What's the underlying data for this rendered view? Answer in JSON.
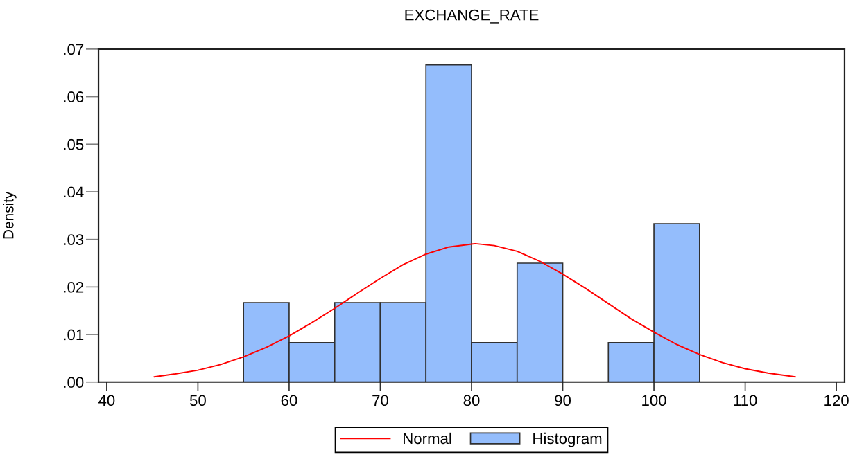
{
  "chart_data": {
    "type": "histogram",
    "title": "EXCHANGE_RATE",
    "ylabel": "Density",
    "xlim": [
      39.1,
      120.9
    ],
    "xticks": [
      40,
      50,
      60,
      70,
      80,
      90,
      100,
      110,
      120
    ],
    "ylim": [
      0,
      0.07
    ],
    "yticks": [
      {
        "value": 0,
        "label": ".00"
      },
      {
        "value": 0.01,
        "label": ".01"
      },
      {
        "value": 0.02,
        "label": ".02"
      },
      {
        "value": 0.03,
        "label": ".03"
      },
      {
        "value": 0.04,
        "label": ".04"
      },
      {
        "value": 0.05,
        "label": ".05"
      },
      {
        "value": 0.06,
        "label": ".06"
      },
      {
        "value": 0.07,
        "label": ".07"
      }
    ],
    "legend": "bottom",
    "series": [
      {
        "name": "Normal",
        "type": "line",
        "color": "#ff0000",
        "x": [
          45.2,
          47.5,
          50,
          52.5,
          55,
          57.5,
          60,
          62.5,
          65,
          67.5,
          70,
          72.5,
          75,
          77.5,
          80,
          80.4,
          82.5,
          85,
          87.5,
          90,
          92.5,
          95,
          97.5,
          100,
          102.5,
          105,
          107.5,
          110,
          112.5,
          115.5
        ],
        "values": [
          0.0011,
          0.0017,
          0.0025,
          0.0037,
          0.0053,
          0.0073,
          0.0097,
          0.0125,
          0.0155,
          0.0187,
          0.0218,
          0.0247,
          0.0269,
          0.0284,
          0.029,
          0.0291,
          0.0287,
          0.0275,
          0.0254,
          0.0227,
          0.0197,
          0.0165,
          0.0133,
          0.0105,
          0.0079,
          0.0058,
          0.0041,
          0.0028,
          0.0019,
          0.0011
        ]
      },
      {
        "name": "Histogram",
        "color": "#94bdfc",
        "bins": [
          55,
          60,
          65,
          70,
          75,
          80,
          85,
          90,
          95,
          100,
          105
        ],
        "values": [
          0.0167,
          0.0083,
          0.0167,
          0.0167,
          0.0667,
          0.0083,
          0.025,
          0,
          0.0083,
          0.0333
        ]
      }
    ]
  }
}
